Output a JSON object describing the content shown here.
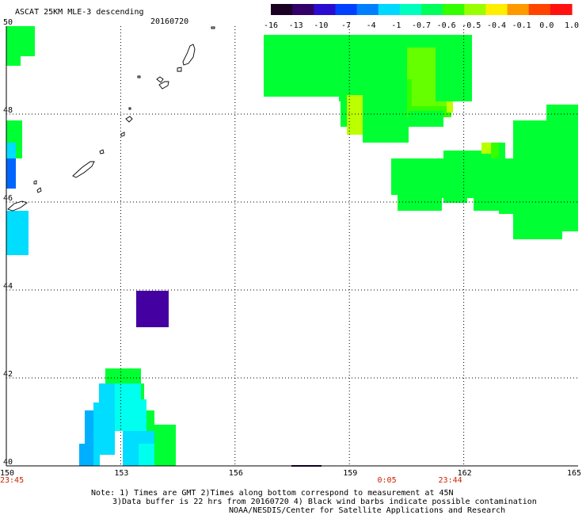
{
  "title": {
    "product": "ASCAT 25KM MLE-3 descending",
    "date": "20160720"
  },
  "colorbar": {
    "labels": [
      "-16",
      "-13",
      "-10",
      "-7",
      "-4",
      "-1",
      "-0.7",
      "-0.6",
      "-0.5",
      "-0.4",
      "-0.1",
      "0.0",
      "1.0"
    ],
    "colors": [
      "#1a0022",
      "#33006a",
      "#2a0bd0",
      "#0040ff",
      "#007fff",
      "#00d8ff",
      "#00ffbe",
      "#00ff5a",
      "#33ff00",
      "#99ff00",
      "#ffee00",
      "#ff9900",
      "#ff4400",
      "#ff1111"
    ]
  },
  "axes": {
    "lon_ticks": [
      "150",
      "153",
      "156",
      "159",
      "162",
      "165"
    ],
    "lat_ticks": [
      "50",
      "48",
      "46",
      "44",
      "42",
      "40"
    ],
    "lon_range": [
      150,
      165
    ],
    "lat_range": [
      40,
      50
    ]
  },
  "time_labels": [
    {
      "text": "23:45",
      "lon": 150
    },
    {
      "text": "0:05",
      "lon": 159.9
    },
    {
      "text": "23:44",
      "lon": 161.5
    }
  ],
  "notes": [
    "Note: 1) Times are GMT 2)Times along bottom correspond to measurement at 45N",
    "3)Data buffer is 22 hrs from 20160720 4) Black wind barbs indicate possible contamination",
    "NOAA/NESDIS/Center for Satellite Applications and Research"
  ],
  "colors": {
    "green": "#00ff33",
    "green_yellow": "#33ff00",
    "lime": "#66ff00",
    "yellow_green": "#bbff00",
    "cyan": "#00ddff",
    "light_cyan": "#00ffee",
    "blue": "#0066ff",
    "sky": "#00b0ff",
    "violet": "#4400a0",
    "navy": "#1a0044"
  }
}
